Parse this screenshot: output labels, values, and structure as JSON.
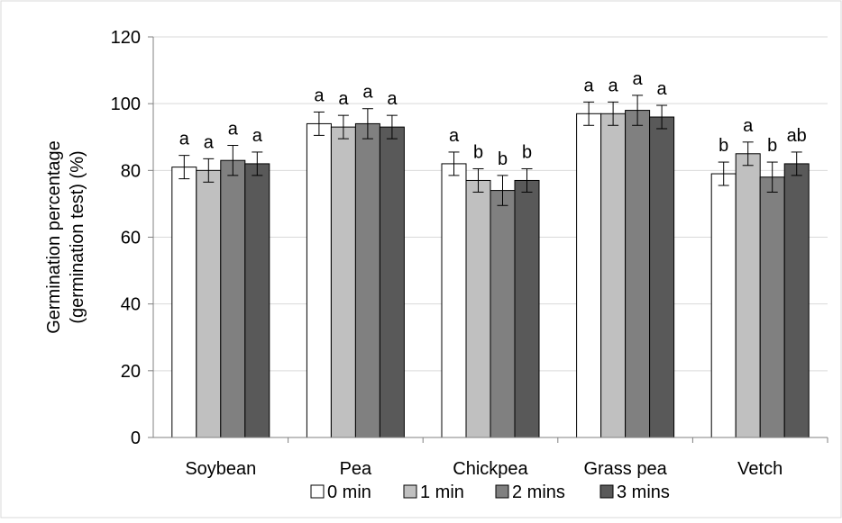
{
  "chart_data": {
    "type": "bar",
    "title": "",
    "xlabel": "",
    "ylabel": [
      "Germination percentage",
      "(germination test)  (%)"
    ],
    "ylim": [
      0,
      120
    ],
    "yticks": [
      "0",
      "20",
      "40",
      "60",
      "80",
      "100",
      "120"
    ],
    "grid": "horizontal",
    "legend_position": "bottom",
    "categories": [
      "Soybean",
      "Pea",
      "Chickpea",
      "Grass pea",
      "Vetch"
    ],
    "series": [
      {
        "name": "0 min",
        "color": "#ffffff",
        "values": [
          81,
          94,
          82,
          97,
          79
        ],
        "errors": [
          3.5,
          3.5,
          3.5,
          3.5,
          3.5
        ],
        "letters": [
          "a",
          "a",
          "a",
          "a",
          "b"
        ]
      },
      {
        "name": "1 min",
        "color": "#c0c0c0",
        "values": [
          80,
          93,
          77,
          97,
          85
        ],
        "errors": [
          3.5,
          3.5,
          3.5,
          3.5,
          3.5
        ],
        "letters": [
          "a",
          "a",
          "b",
          "a",
          "a"
        ]
      },
      {
        "name": "2 mins",
        "color": "#808080",
        "values": [
          83,
          94,
          74,
          98,
          78
        ],
        "errors": [
          4.5,
          4.5,
          4.5,
          4.5,
          4.5
        ],
        "letters": [
          "a",
          "a",
          "b",
          "a",
          "b"
        ]
      },
      {
        "name": "3 mins",
        "color": "#595959",
        "values": [
          82,
          93,
          77,
          96,
          82
        ],
        "errors": [
          3.5,
          3.5,
          3.5,
          3.5,
          3.5
        ],
        "letters": [
          "a",
          "a",
          "b",
          "a",
          "ab"
        ]
      }
    ]
  }
}
